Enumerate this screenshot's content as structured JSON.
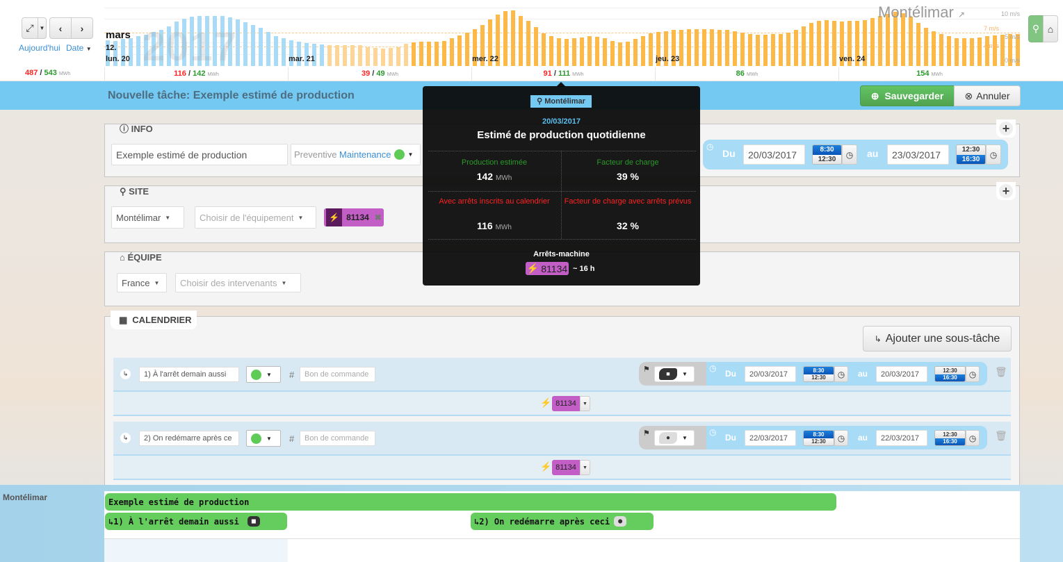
{
  "toolbar": {
    "today": "Aujourd'hui",
    "date": "Date",
    "expand_icon": "expand-icon",
    "prev_icon": "chevron-left-icon",
    "next_icon": "chevron-right-icon"
  },
  "chart_header": {
    "month": "mars",
    "week": "12.",
    "year_watermark": "2017",
    "site": "Montélimar"
  },
  "totals": {
    "red": "487",
    "green": "543",
    "unit": "MWh"
  },
  "chart_data": {
    "type": "bar",
    "ylabel": "m/s",
    "ylim": [
      0,
      10
    ],
    "axis_ticks": [
      "10 m/s",
      "5 m/s",
      "0 m/s"
    ],
    "thresholds": [
      {
        "label": "7 m/s",
        "value": 7,
        "color": "#f5a623"
      },
      {
        "label": "4 m/s",
        "value": 4,
        "color": "#f5a623"
      }
    ],
    "categories": [
      "lun. 20",
      "mar. 21",
      "mer. 22",
      "jeu. 23",
      "ven. 24"
    ],
    "values_hourly": [
      4.9,
      4.7,
      5.1,
      5.3,
      5.7,
      5.9,
      6.4,
      6.8,
      7.5,
      8.4,
      8.9,
      9.3,
      9.5,
      9.5,
      9.5,
      9.5,
      9.2,
      8.8,
      8.3,
      7.7,
      7.2,
      6.4,
      5.7,
      5.3,
      4.9,
      4.6,
      4.3,
      4.2,
      4.1,
      4.0,
      4.0,
      4.0,
      3.9,
      3.9,
      3.6,
      3.4,
      3.3,
      3.4,
      3.6,
      4.2,
      4.5,
      4.6,
      4.6,
      4.6,
      4.8,
      5.2,
      5.8,
      6.3,
      7.0,
      7.8,
      8.8,
      9.8,
      10.4,
      10.5,
      9.5,
      8.5,
      7.4,
      6.2,
      5.7,
      5.2,
      5.1,
      5.2,
      5.4,
      5.6,
      5.5,
      5.2,
      4.7,
      4.5,
      4.6,
      5.1,
      5.7,
      6.2,
      6.4,
      6.6,
      6.8,
      6.9,
      7.0,
      7.0,
      7.0,
      7.0,
      6.9,
      6.8,
      6.6,
      6.3,
      6.1,
      5.9,
      5.9,
      6.0,
      6.1,
      6.3,
      6.8,
      7.5,
      8.2,
      8.6,
      8.7,
      8.6,
      8.4,
      8.6,
      8.5,
      8.7,
      9.1,
      9.5,
      9.9,
      10.2,
      10.0,
      9.4,
      8.2,
      7.3,
      6.6,
      6.0,
      5.6,
      5.2,
      5.2,
      5.3,
      5.4,
      5.7,
      5.8,
      5.9,
      6.0,
      6.1
    ],
    "highlighted_hours": 29,
    "colors": {
      "highlighted": "#a9dbf7",
      "normal": "#fdb947",
      "low": "#fdd697"
    },
    "daily_summary": [
      {
        "red": "116",
        "green": "142"
      },
      {
        "red": "39",
        "green": "49"
      },
      {
        "red": "91",
        "green": "111"
      },
      {
        "red": null,
        "green": "86"
      },
      {
        "red": null,
        "green": "154"
      }
    ],
    "unit": "MWh"
  },
  "header": {
    "title": "Nouvelle tâche: Exemple estimé de production",
    "save": "Sauvegarder",
    "cancel": "Annuler"
  },
  "info": {
    "tab": "INFO",
    "name": "Exemple estimé de production",
    "type_prefix": "Preventive",
    "type": "Maintenance",
    "type_color": "#5ecb57",
    "from_label": "Du",
    "from_date": "20/03/2017",
    "from_times": [
      "8:30",
      "12:30"
    ],
    "to_label": "au",
    "to_date": "23/03/2017",
    "to_times": [
      "12:30",
      "16:30"
    ]
  },
  "site": {
    "tab": "SITE",
    "site": "Montélimar",
    "equipment_placeholder": "Choisir de l'équipement",
    "tag": "81134"
  },
  "team": {
    "tab": "ÉQUIPE",
    "country": "France",
    "people_placeholder": "Choisir des intervenants"
  },
  "calendar": {
    "tab": "CALENDRIER",
    "add_subtask": "Ajouter une sous-tâche",
    "subtasks": [
      {
        "name": "1) À l'arrêt demain aussi",
        "po_placeholder": "Bon de commande",
        "hash": "#",
        "status_icon": "stop-icon",
        "from_label": "Du",
        "from_date": "20/03/2017",
        "from_times": [
          "8:30",
          "12:30"
        ],
        "to_label": "au",
        "to_date": "20/03/2017",
        "to_times": [
          "12:30",
          "16:30"
        ],
        "tag": "81134"
      },
      {
        "name": "2) On redémarre après ce",
        "po_placeholder": "Bon de commande",
        "hash": "#",
        "status_icon": "question-icon",
        "from_label": "Du",
        "from_date": "22/03/2017",
        "from_times": [
          "8:30",
          "12:30"
        ],
        "to_label": "au",
        "to_date": "22/03/2017",
        "to_times": [
          "12:30",
          "16:30"
        ],
        "tag": "81134"
      }
    ]
  },
  "timeline": {
    "row_label": "Montélimar",
    "task": "Exemple estimé de production",
    "sub1": "↳1) À l'arrêt demain aussi",
    "sub2": "↳2) On redémarre après ceci"
  },
  "tooltip": {
    "site": "Montélimar",
    "date": "20/03/2017",
    "title": "Estimé de production quotidienne",
    "prod_label": "Production estimée",
    "prod_value": "142",
    "prod_unit": "MWh",
    "cf_label": "Facteur de charge",
    "cf_value": "39 %",
    "prod_stops_label": "Avec arrêts inscrits au calendrier",
    "prod_stops_value": "116",
    "prod_stops_unit": "MWh",
    "cf_stops_label": "Facteur de charge avec arrêts prévus",
    "cf_stops_value": "32 %",
    "stops_label": "Arrêts-machine",
    "stop_tag": "81134",
    "stop_duration": "~ 16 h"
  }
}
